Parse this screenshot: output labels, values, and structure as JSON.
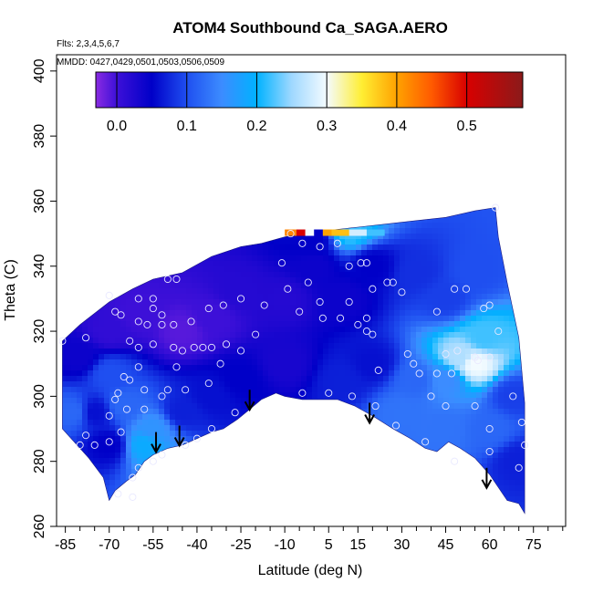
{
  "chart_data": {
    "type": "heatmap",
    "title": "ATOM4 Southbound Ca_SAGA.AERO",
    "subtitle_flights": "Flts: 2,3,4,5,6,7",
    "subtitle_dates": "MMDD: 0427,0429,0501,0503,0506,0509",
    "xlabel": "Latitude (deg N)",
    "ylabel": "Theta (C)",
    "xlim": [
      -88,
      86
    ],
    "ylim": [
      260,
      405
    ],
    "xticks": [
      -85,
      -70,
      -55,
      -40,
      -25,
      -10,
      5,
      15,
      30,
      45,
      60,
      75
    ],
    "yticks": [
      260,
      280,
      300,
      320,
      340,
      360,
      380,
      400
    ],
    "colorbar": {
      "range": [
        -0.03,
        0.58
      ],
      "ticks": [
        0.0,
        0.1,
        0.2,
        0.3,
        0.4,
        0.5
      ],
      "tick_labels": [
        "0.0",
        "0.1",
        "0.2",
        "0.3",
        "0.4",
        "0.5"
      ],
      "stops": [
        {
          "v": -0.03,
          "c": "#8a2be2"
        },
        {
          "v": 0.0,
          "c": "#3d10d8"
        },
        {
          "v": 0.05,
          "c": "#0000c8"
        },
        {
          "v": 0.1,
          "c": "#1f4ff0"
        },
        {
          "v": 0.15,
          "c": "#3c8cff"
        },
        {
          "v": 0.2,
          "c": "#00b2ff"
        },
        {
          "v": 0.25,
          "c": "#9fd8ff"
        },
        {
          "v": 0.3,
          "c": "#f4fbff"
        },
        {
          "v": 0.35,
          "c": "#ffee33"
        },
        {
          "v": 0.4,
          "c": "#ffa200"
        },
        {
          "v": 0.45,
          "c": "#ff5a00"
        },
        {
          "v": 0.5,
          "c": "#d80000"
        },
        {
          "v": 0.58,
          "c": "#8b1a1a"
        }
      ]
    },
    "field_boundary_top": [
      [
        -86,
        317
      ],
      [
        -80,
        322
      ],
      [
        -70,
        329
      ],
      [
        -62,
        333
      ],
      [
        -55,
        336
      ],
      [
        -45,
        338
      ],
      [
        -35,
        343
      ],
      [
        -25,
        346
      ],
      [
        -18,
        347
      ],
      [
        -10,
        349
      ],
      [
        -4,
        350
      ],
      [
        5,
        351
      ],
      [
        15,
        352
      ],
      [
        25,
        353
      ],
      [
        35,
        354
      ],
      [
        45,
        355
      ],
      [
        55,
        357
      ],
      [
        62,
        358
      ],
      [
        63,
        349
      ],
      [
        66,
        335
      ],
      [
        70,
        318
      ],
      [
        72,
        298
      ]
    ],
    "field_boundary_bottom": [
      [
        72,
        264
      ],
      [
        70,
        267
      ],
      [
        66,
        268
      ],
      [
        60,
        276
      ],
      [
        55,
        281
      ],
      [
        50,
        284
      ],
      [
        46,
        286
      ],
      [
        42,
        283
      ],
      [
        38,
        284
      ],
      [
        33,
        287
      ],
      [
        27,
        290
      ],
      [
        20,
        294
      ],
      [
        14,
        297
      ],
      [
        8,
        299
      ],
      [
        0,
        299
      ],
      [
        -4,
        299
      ],
      [
        -10,
        300
      ],
      [
        -13,
        301
      ],
      [
        -18,
        299
      ],
      [
        -22,
        296
      ],
      [
        -26,
        293
      ],
      [
        -31,
        290
      ],
      [
        -35,
        289
      ],
      [
        -40,
        287
      ],
      [
        -45,
        285
      ],
      [
        -50,
        284
      ],
      [
        -55,
        282
      ],
      [
        -58,
        280
      ],
      [
        -61,
        276
      ],
      [
        -64,
        274
      ],
      [
        -68,
        271
      ],
      [
        -70,
        268
      ],
      [
        -72,
        275
      ],
      [
        -77,
        281
      ],
      [
        -83,
        287
      ],
      [
        -86,
        290
      ]
    ],
    "field_samples": [
      {
        "lat": -80,
        "theta": 312,
        "v": 0.04
      },
      {
        "lat": -70,
        "theta": 320,
        "v": 0.01
      },
      {
        "lat": -60,
        "theta": 325,
        "v": 0.0
      },
      {
        "lat": -45,
        "theta": 320,
        "v": -0.01
      },
      {
        "lat": -35,
        "theta": 324,
        "v": 0.0
      },
      {
        "lat": -25,
        "theta": 332,
        "v": 0.02
      },
      {
        "lat": -10,
        "theta": 330,
        "v": 0.02
      },
      {
        "lat": 0,
        "theta": 340,
        "v": 0.04
      },
      {
        "lat": 10,
        "theta": 330,
        "v": 0.04
      },
      {
        "lat": 20,
        "theta": 340,
        "v": 0.05
      },
      {
        "lat": 35,
        "theta": 338,
        "v": 0.08
      },
      {
        "lat": 45,
        "theta": 330,
        "v": 0.09
      },
      {
        "lat": 55,
        "theta": 338,
        "v": 0.1
      },
      {
        "lat": 50,
        "theta": 312,
        "v": 0.26
      },
      {
        "lat": 55,
        "theta": 310,
        "v": 0.3
      },
      {
        "lat": 58,
        "theta": 318,
        "v": 0.22
      },
      {
        "lat": 45,
        "theta": 305,
        "v": 0.15
      },
      {
        "lat": 35,
        "theta": 305,
        "v": 0.12
      },
      {
        "lat": 30,
        "theta": 295,
        "v": 0.13
      },
      {
        "lat": 45,
        "theta": 290,
        "v": 0.13
      },
      {
        "lat": 60,
        "theta": 290,
        "v": 0.12
      },
      {
        "lat": 68,
        "theta": 300,
        "v": 0.09
      },
      {
        "lat": 70,
        "theta": 280,
        "v": 0.07
      },
      {
        "lat": 20,
        "theta": 310,
        "v": 0.06
      },
      {
        "lat": 10,
        "theta": 305,
        "v": 0.07
      },
      {
        "lat": -10,
        "theta": 310,
        "v": 0.03
      },
      {
        "lat": -25,
        "theta": 305,
        "v": 0.05
      },
      {
        "lat": -35,
        "theta": 300,
        "v": 0.06
      },
      {
        "lat": -45,
        "theta": 295,
        "v": 0.07
      },
      {
        "lat": -55,
        "theta": 290,
        "v": 0.16
      },
      {
        "lat": -58,
        "theta": 285,
        "v": 0.19
      },
      {
        "lat": -65,
        "theta": 297,
        "v": 0.12
      },
      {
        "lat": -70,
        "theta": 307,
        "v": 0.1
      },
      {
        "lat": -75,
        "theta": 295,
        "v": 0.06
      },
      {
        "lat": -82,
        "theta": 295,
        "v": 0.12
      },
      {
        "lat": -70,
        "theta": 285,
        "v": 0.05
      },
      {
        "lat": 0,
        "theta": 348,
        "v": 0.05
      },
      {
        "lat": 12,
        "theta": 351,
        "v": 0.22
      }
    ],
    "top_strip": [
      {
        "lat_from": -10,
        "lat_to": -6,
        "v": 0.42
      },
      {
        "lat_from": -6,
        "lat_to": -3,
        "v": 0.5
      },
      {
        "lat_from": -3,
        "lat_to": 0,
        "v": 0.3
      },
      {
        "lat_from": 0,
        "lat_to": 3,
        "v": 0.05
      },
      {
        "lat_from": 3,
        "lat_to": 6,
        "v": 0.4
      },
      {
        "lat_from": 6,
        "lat_to": 12,
        "v": 0.38
      },
      {
        "lat_from": 12,
        "lat_to": 18,
        "v": 0.28
      },
      {
        "lat_from": 18,
        "lat_to": 24,
        "v": 0.22
      }
    ],
    "obs_points": [
      {
        "lat": -70,
        "theta": 331
      },
      {
        "lat": -68,
        "theta": 326
      },
      {
        "lat": -66,
        "theta": 325
      },
      {
        "lat": -60,
        "theta": 330
      },
      {
        "lat": -55,
        "theta": 330
      },
      {
        "lat": -50,
        "theta": 336
      },
      {
        "lat": -55,
        "theta": 327
      },
      {
        "lat": -52,
        "theta": 325
      },
      {
        "lat": -57,
        "theta": 322
      },
      {
        "lat": -60,
        "theta": 323
      },
      {
        "lat": -63,
        "theta": 317
      },
      {
        "lat": -60,
        "theta": 315
      },
      {
        "lat": -55,
        "theta": 316
      },
      {
        "lat": -52,
        "theta": 322
      },
      {
        "lat": -48,
        "theta": 322
      },
      {
        "lat": -48,
        "theta": 315
      },
      {
        "lat": -45,
        "theta": 314
      },
      {
        "lat": -41,
        "theta": 315
      },
      {
        "lat": -38,
        "theta": 315
      },
      {
        "lat": -35,
        "theta": 315
      },
      {
        "lat": -30,
        "theta": 316
      },
      {
        "lat": -25,
        "theta": 314
      },
      {
        "lat": -42,
        "theta": 323
      },
      {
        "lat": -36,
        "theta": 327
      },
      {
        "lat": -31,
        "theta": 328
      },
      {
        "lat": -25,
        "theta": 330
      },
      {
        "lat": -17,
        "theta": 328
      },
      {
        "lat": -20,
        "theta": 319
      },
      {
        "lat": -60,
        "theta": 309
      },
      {
        "lat": -63,
        "theta": 305
      },
      {
        "lat": -65,
        "theta": 306
      },
      {
        "lat": -58,
        "theta": 302
      },
      {
        "lat": -50,
        "theta": 302
      },
      {
        "lat": -47,
        "theta": 309
      },
      {
        "lat": -44,
        "theta": 302
      },
      {
        "lat": -32,
        "theta": 310
      },
      {
        "lat": -36,
        "theta": 304
      },
      {
        "lat": -67,
        "theta": 301
      },
      {
        "lat": -68,
        "theta": 299
      },
      {
        "lat": -70,
        "theta": 294
      },
      {
        "lat": -64,
        "theta": 296
      },
      {
        "lat": -58,
        "theta": 296
      },
      {
        "lat": -52,
        "theta": 300
      },
      {
        "lat": -66,
        "theta": 289
      },
      {
        "lat": -70,
        "theta": 286
      },
      {
        "lat": -78,
        "theta": 288
      },
      {
        "lat": -75,
        "theta": 285
      },
      {
        "lat": -86,
        "theta": 317
      },
      {
        "lat": -78,
        "theta": 318
      },
      {
        "lat": -52,
        "theta": 282
      },
      {
        "lat": -55,
        "theta": 280
      },
      {
        "lat": -60,
        "theta": 278
      },
      {
        "lat": -62,
        "theta": 275
      },
      {
        "lat": -67,
        "theta": 270
      },
      {
        "lat": -44,
        "theta": 285
      },
      {
        "lat": -40,
        "theta": 287
      },
      {
        "lat": -35,
        "theta": 290
      },
      {
        "lat": -27,
        "theta": 295
      },
      {
        "lat": -47,
        "theta": 336
      },
      {
        "lat": -9,
        "theta": 333
      },
      {
        "lat": -2,
        "theta": 335
      },
      {
        "lat": 2,
        "theta": 329
      },
      {
        "lat": -5,
        "theta": 326
      },
      {
        "lat": 3,
        "theta": 324
      },
      {
        "lat": 9,
        "theta": 324
      },
      {
        "lat": 12,
        "theta": 329
      },
      {
        "lat": 15,
        "theta": 322
      },
      {
        "lat": 18,
        "theta": 324
      },
      {
        "lat": 18,
        "theta": 320
      },
      {
        "lat": 20,
        "theta": 319
      },
      {
        "lat": 20,
        "theta": 333
      },
      {
        "lat": 25,
        "theta": 335
      },
      {
        "lat": 27,
        "theta": 335
      },
      {
        "lat": 30,
        "theta": 332
      },
      {
        "lat": 12,
        "theta": 340
      },
      {
        "lat": 16,
        "theta": 341
      },
      {
        "lat": 18,
        "theta": 341
      },
      {
        "lat": -11,
        "theta": 341
      },
      {
        "lat": 2,
        "theta": 346
      },
      {
        "lat": -8,
        "theta": 350
      },
      {
        "lat": 8,
        "theta": 347
      },
      {
        "lat": -4,
        "theta": 347
      },
      {
        "lat": 32,
        "theta": 313
      },
      {
        "lat": 34,
        "theta": 310
      },
      {
        "lat": 36,
        "theta": 307
      },
      {
        "lat": 42,
        "theta": 326
      },
      {
        "lat": 45,
        "theta": 313
      },
      {
        "lat": 49,
        "theta": 314
      },
      {
        "lat": 55,
        "theta": 312
      },
      {
        "lat": 56,
        "theta": 311
      },
      {
        "lat": 58,
        "theta": 327
      },
      {
        "lat": 60,
        "theta": 328
      },
      {
        "lat": 52,
        "theta": 333
      },
      {
        "lat": 48,
        "theta": 333
      },
      {
        "lat": 60,
        "theta": 312
      },
      {
        "lat": 63,
        "theta": 320
      },
      {
        "lat": 47,
        "theta": 307
      },
      {
        "lat": 42,
        "theta": 307
      },
      {
        "lat": 40,
        "theta": 300
      },
      {
        "lat": 45,
        "theta": 297
      },
      {
        "lat": 55,
        "theta": 297
      },
      {
        "lat": 60,
        "theta": 290
      },
      {
        "lat": 68,
        "theta": 300
      },
      {
        "lat": 71,
        "theta": 292
      },
      {
        "lat": 72,
        "theta": 285
      },
      {
        "lat": 70,
        "theta": 278
      },
      {
        "lat": 60,
        "theta": 283
      },
      {
        "lat": 48,
        "theta": 280
      },
      {
        "lat": 38,
        "theta": 286
      },
      {
        "lat": 28,
        "theta": 291
      },
      {
        "lat": 21,
        "theta": 297
      },
      {
        "lat": 13,
        "theta": 300
      },
      {
        "lat": 5,
        "theta": 301
      },
      {
        "lat": -4,
        "theta": 301
      },
      {
        "lat": 22,
        "theta": 308
      },
      {
        "lat": 62,
        "theta": 358
      },
      {
        "lat": -80,
        "theta": 285
      },
      {
        "lat": -62,
        "theta": 269
      }
    ],
    "arrows": [
      {
        "lat": -54,
        "theta": 289
      },
      {
        "lat": -46,
        "theta": 291
      },
      {
        "lat": -22,
        "theta": 302
      },
      {
        "lat": 19,
        "theta": 298
      },
      {
        "lat": 59,
        "theta": 278
      }
    ]
  }
}
